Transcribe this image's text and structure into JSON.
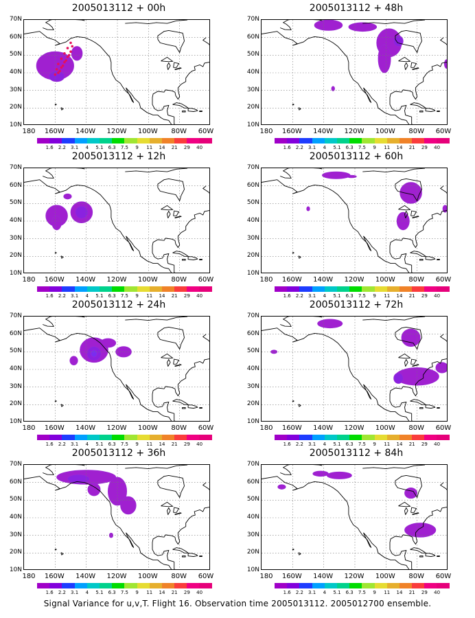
{
  "panels": [
    {
      "title": "2005013112 + 00h"
    },
    {
      "title": "2005013112 + 12h"
    },
    {
      "title": "2005013112 + 24h"
    },
    {
      "title": "2005013112 + 36h"
    },
    {
      "title": "2005013112 + 48h"
    },
    {
      "title": "2005013112 + 60h"
    },
    {
      "title": "2005013112 + 72h"
    },
    {
      "title": "2005013112 + 84h"
    }
  ],
  "lat_labels": [
    "70N",
    "60N",
    "50N",
    "40N",
    "30N",
    "20N",
    "10N"
  ],
  "lon_labels": [
    "180",
    "160W",
    "140W",
    "120W",
    "100W",
    "80W",
    "60W"
  ],
  "colorbar": {
    "labels": [
      "1.6",
      "2.2",
      "3.1",
      "4",
      "5.1",
      "6.3",
      "7.5",
      "9",
      "11",
      "14",
      "21",
      "29",
      "40"
    ],
    "colors": [
      "#a000c8",
      "#8200dc",
      "#1e3cff",
      "#00a0ff",
      "#00c8c8",
      "#00d28c",
      "#00dc00",
      "#a0e632",
      "#e6dc32",
      "#e6af2d",
      "#f08228",
      "#fa3c3c",
      "#f00082",
      "#e6007a"
    ]
  },
  "caption": "Signal Variance for u,v,T. Flight 16. Observation time 2005013112. 2005012700 ensemble."
}
